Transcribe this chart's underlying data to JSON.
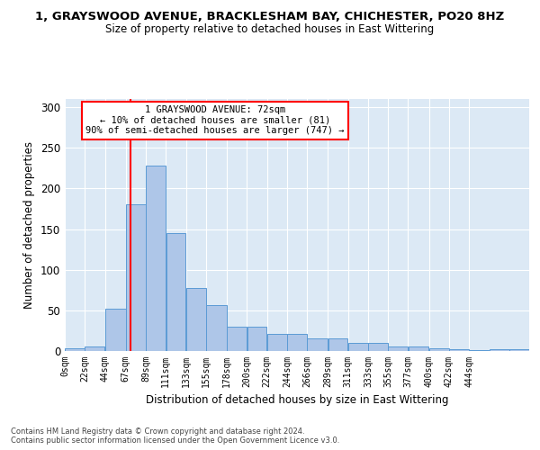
{
  "title": "1, GRAYSWOOD AVENUE, BRACKLESHAM BAY, CHICHESTER, PO20 8HZ",
  "subtitle": "Size of property relative to detached houses in East Wittering",
  "xlabel": "Distribution of detached houses by size in East Wittering",
  "ylabel": "Number of detached properties",
  "footer1": "Contains HM Land Registry data © Crown copyright and database right 2024.",
  "footer2": "Contains public sector information licensed under the Open Government Licence v3.0.",
  "bar_values": [
    3,
    6,
    52,
    181,
    228,
    145,
    77,
    56,
    30,
    30,
    21,
    21,
    15,
    15,
    10,
    10,
    6,
    5,
    3,
    2,
    1,
    2,
    2
  ],
  "bin_edges": [
    0,
    22,
    44,
    67,
    89,
    111,
    133,
    155,
    178,
    200,
    222,
    244,
    266,
    289,
    311,
    333,
    355,
    377,
    400,
    422,
    444,
    466,
    488,
    510
  ],
  "bar_color": "#aec6e8",
  "bar_edge_color": "#5b9bd5",
  "vline_x": 72,
  "vline_color": "red",
  "annotation_text": "1 GRAYSWOOD AVENUE: 72sqm\n← 10% of detached houses are smaller (81)\n90% of semi-detached houses are larger (747) →",
  "annotation_box_color": "white",
  "annotation_box_edge": "red",
  "ylim": [
    0,
    310
  ],
  "background_color": "#dce9f5",
  "tick_labels": [
    "0sqm",
    "22sqm",
    "44sqm",
    "67sqm",
    "89sqm",
    "111sqm",
    "133sqm",
    "155sqm",
    "178sqm",
    "200sqm",
    "222sqm",
    "244sqm",
    "266sqm",
    "289sqm",
    "311sqm",
    "333sqm",
    "355sqm",
    "377sqm",
    "400sqm",
    "422sqm",
    "444sqm"
  ],
  "yticks": [
    0,
    50,
    100,
    150,
    200,
    250,
    300
  ]
}
